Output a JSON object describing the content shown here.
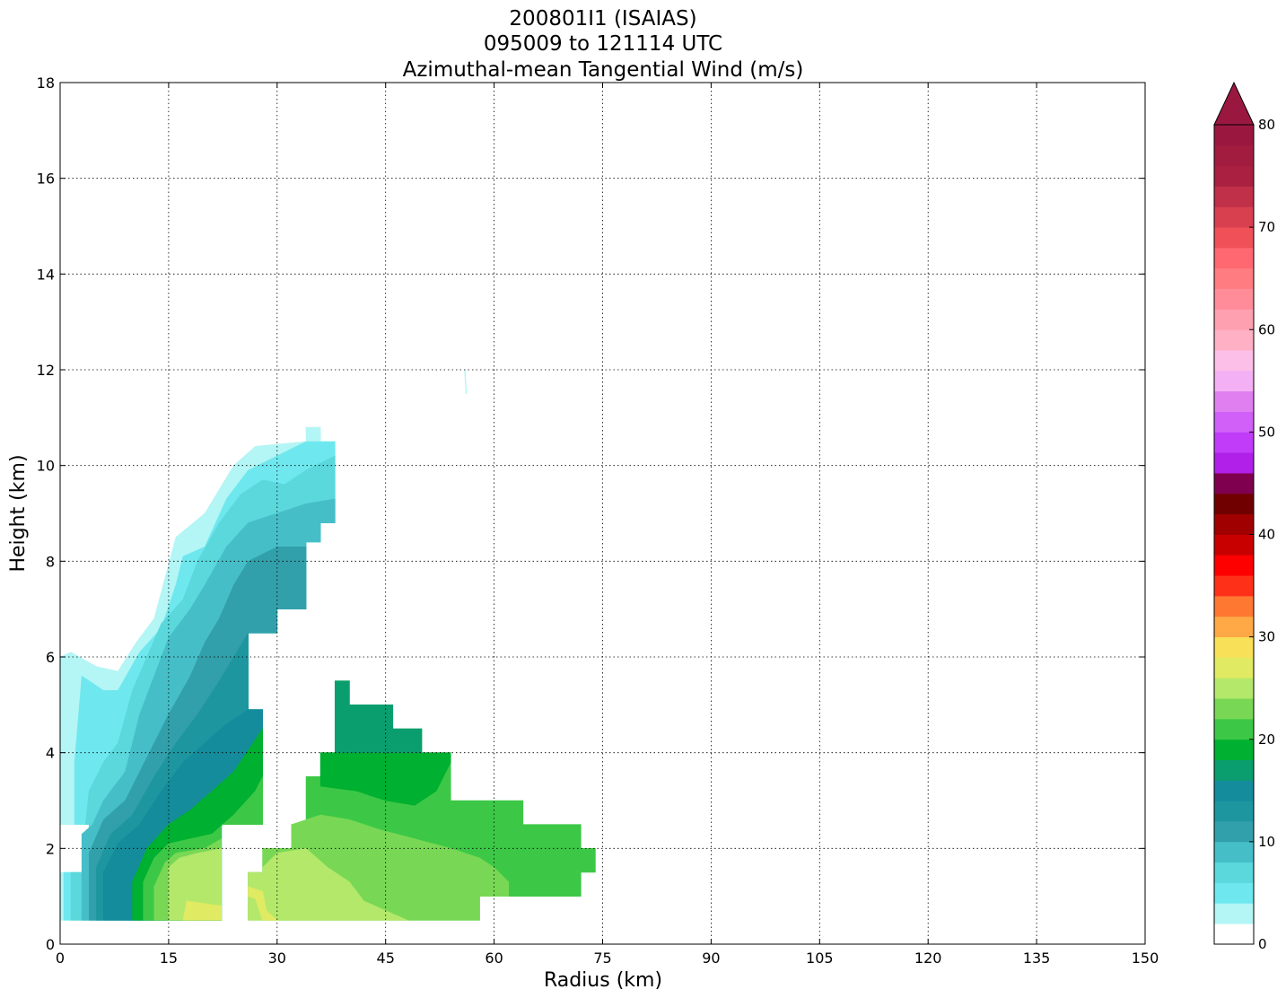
{
  "chart_data": {
    "type": "contourf",
    "title_lines": [
      "200801I1 (ISAIAS)",
      "095009 to 121114 UTC",
      "Azimuthal-mean Tangential Wind (m/s)"
    ],
    "x_label": "Radius (km)",
    "y_label": "Height (km)",
    "xlim": [
      0,
      150
    ],
    "ylim": [
      0,
      18
    ],
    "xticks": [
      0,
      15,
      30,
      45,
      60,
      75,
      90,
      105,
      120,
      135,
      150
    ],
    "yticks": [
      0,
      2,
      4,
      6,
      8,
      10,
      12,
      14,
      16,
      18
    ],
    "grid": true,
    "levels": [
      0,
      2,
      4,
      6,
      8,
      10,
      12,
      14,
      16,
      18,
      20,
      22,
      24,
      26,
      28,
      30,
      32,
      34,
      36,
      38,
      40,
      42,
      44,
      46,
      48,
      50,
      52,
      54,
      56,
      58,
      60,
      62,
      64,
      66,
      68,
      70,
      72,
      74,
      76,
      78,
      80
    ],
    "colors": [
      "#ffffff",
      "#b4f5f5",
      "#6ee8ee",
      "#5ad8dc",
      "#46bec8",
      "#32a0aa",
      "#1e96a0",
      "#148c9c",
      "#0a9e6e",
      "#00b030",
      "#3cc846",
      "#78d855",
      "#b4e86a",
      "#e0ea62",
      "#f8e058",
      "#ffa846",
      "#ff7832",
      "#ff3018",
      "#ff0000",
      "#c80000",
      "#a00000",
      "#700000",
      "#800050",
      "#b020e8",
      "#c03cf8",
      "#d060f8",
      "#e080f0",
      "#f4b0f4",
      "#fcc0e8",
      "#ffb0c4",
      "#ffa0b0",
      "#ff8c98",
      "#ff7c80",
      "#ff6870",
      "#f05058",
      "#d84050",
      "#c03048",
      "#aa2040",
      "#a21c40",
      "#9a1840"
    ],
    "extend_color": "#9a1840",
    "colorbar_ticks": [
      0,
      10,
      20,
      30,
      40,
      50,
      60,
      70,
      80
    ],
    "contours": [
      {
        "level": 2,
        "x": [
          0,
          0,
          4,
          4,
          0,
          0,
          1.5,
          5,
          8,
          10.5,
          13,
          16,
          20,
          24,
          27,
          34,
          34,
          36,
          36,
          38,
          38,
          36,
          36,
          34,
          34,
          30,
          30,
          26,
          26,
          28,
          28,
          22.3,
          22.3
        ],
        "y": [
          0.5,
          1.5,
          1.5,
          2.5,
          2.5,
          6.0,
          6.1,
          5.8,
          5.7,
          6.3,
          6.8,
          8.5,
          9.0,
          10.0,
          10.4,
          10.5,
          10.8,
          10.8,
          10.5,
          10.5,
          8.8,
          8.8,
          8.4,
          8.4,
          7.0,
          7.0,
          6.5,
          6.5,
          4.9,
          4.9,
          2.5,
          2.5,
          0.5
        ]
      },
      {
        "level": 4,
        "x": [
          0.5,
          0.5,
          4,
          4,
          2,
          2,
          3,
          6,
          8,
          11,
          14,
          16,
          17,
          20,
          23,
          26,
          30,
          34,
          38,
          38,
          36,
          36,
          34,
          34,
          30,
          30,
          26,
          26,
          28,
          28,
          22.3,
          22.3
        ],
        "y": [
          0.5,
          1.5,
          1.5,
          2.5,
          2.5,
          3.8,
          5.6,
          5.3,
          5.3,
          6.1,
          6.6,
          7.5,
          8.1,
          8.3,
          9.3,
          9.9,
          10.2,
          10.5,
          10.5,
          8.8,
          8.8,
          8.4,
          8.4,
          7.0,
          7.0,
          6.5,
          6.5,
          4.9,
          4.9,
          2.5,
          2.5,
          0.5
        ]
      },
      {
        "level": 6,
        "x": [
          1.5,
          1.5,
          4,
          4,
          3.5,
          4,
          6,
          8,
          10,
          12,
          14,
          17,
          19,
          22,
          25,
          28,
          31,
          34,
          38,
          38,
          36,
          36,
          34,
          34,
          30,
          30,
          26,
          26,
          28,
          28,
          22.3,
          22.3
        ],
        "y": [
          0.5,
          1.5,
          1.5,
          2.5,
          2.5,
          3.2,
          3.8,
          4.2,
          5.3,
          6.0,
          6.7,
          7.2,
          8.0,
          8.8,
          9.4,
          9.7,
          9.6,
          9.9,
          10.2,
          8.8,
          8.8,
          8.4,
          8.4,
          7.0,
          7.0,
          6.5,
          6.5,
          4.9,
          4.9,
          2.5,
          2.5,
          0.5
        ]
      },
      {
        "level": 8,
        "x": [
          3,
          3,
          4.5,
          6,
          9,
          11,
          13,
          15,
          18,
          20,
          23,
          26,
          30,
          34,
          38,
          38,
          36,
          36,
          34,
          34,
          30,
          30,
          26,
          26,
          28,
          28,
          22.3,
          22.3
        ],
        "y": [
          0.5,
          2.3,
          2.5,
          3.0,
          3.6,
          4.8,
          5.6,
          6.4,
          7.0,
          7.5,
          8.3,
          8.8,
          9.0,
          9.2,
          9.3,
          8.8,
          8.8,
          8.4,
          8.4,
          7.0,
          7.0,
          6.5,
          6.5,
          4.9,
          4.9,
          2.5,
          2.5,
          0.5
        ]
      },
      {
        "level": 10,
        "x": [
          4,
          4,
          6,
          9,
          12,
          15,
          18,
          20,
          22,
          24,
          26,
          30,
          34,
          34,
          30,
          30,
          26,
          26,
          28,
          28,
          22.3,
          22.3
        ],
        "y": [
          0.5,
          1.9,
          2.6,
          3.0,
          3.9,
          4.8,
          5.6,
          6.3,
          6.8,
          7.5,
          8.0,
          8.3,
          8.3,
          7.0,
          7.0,
          6.5,
          6.5,
          4.9,
          4.9,
          2.5,
          2.5,
          0.5
        ]
      },
      {
        "level": 12,
        "x": [
          5,
          5,
          7,
          10,
          13,
          16,
          19,
          22,
          24,
          26,
          26,
          28,
          28,
          22.3,
          22.3
        ],
        "y": [
          0.5,
          1.6,
          2.3,
          2.7,
          3.5,
          4.2,
          4.8,
          5.5,
          6.0,
          6.5,
          4.9,
          4.9,
          2.5,
          2.5,
          0.5
        ]
      },
      {
        "level": 14,
        "x": [
          6,
          6,
          8,
          11,
          14,
          17,
          20,
          23,
          26,
          28,
          28,
          22.3,
          22.3
        ],
        "y": [
          0.5,
          1.5,
          2.1,
          2.5,
          3.2,
          3.8,
          4.2,
          4.6,
          4.9,
          4.9,
          2.5,
          2.5,
          0.5
        ]
      },
      {
        "level": 18,
        "x": [
          10,
          10,
          12,
          15,
          18,
          21,
          24,
          28,
          28,
          22.3,
          22.3
        ],
        "y": [
          0.5,
          1.3,
          2.0,
          2.5,
          2.8,
          3.2,
          3.6,
          4.5,
          2.5,
          2.5,
          0.5
        ]
      },
      {
        "level": 20,
        "x": [
          11.5,
          11.5,
          13,
          15,
          18,
          21,
          24,
          27,
          28,
          28,
          22.3,
          22.3
        ],
        "y": [
          0.5,
          1.3,
          1.8,
          2.1,
          2.2,
          2.3,
          2.7,
          3.2,
          3.5,
          2.5,
          2.5,
          0.5
        ]
      },
      {
        "level": 22,
        "x": [
          13,
          13,
          14.5,
          16,
          20,
          22.3,
          22.3
        ],
        "y": [
          0.5,
          1.2,
          1.7,
          1.9,
          2.0,
          2.2,
          0.5
        ]
      },
      {
        "level": 24,
        "x": [
          15,
          15,
          16.5,
          19,
          22.3,
          22.3
        ],
        "y": [
          0.5,
          1.6,
          1.8,
          1.9,
          2.0,
          0.5
        ]
      },
      {
        "level": 26,
        "x": [
          17,
          17.5,
          22.3,
          22.3
        ],
        "y": [
          0.5,
          0.9,
          0.8,
          0.5
        ]
      },
      {
        "level": 20,
        "x": [
          26,
          26,
          28,
          28,
          32,
          32,
          34,
          34,
          36,
          36,
          38,
          38,
          40,
          40,
          46,
          46,
          50,
          50,
          54,
          54,
          64,
          64,
          72,
          72,
          74,
          74,
          72,
          72,
          58,
          58
        ],
        "y": [
          0.5,
          1.5,
          1.5,
          2.0,
          2.0,
          2.5,
          2.5,
          3.5,
          3.5,
          4.0,
          4.0,
          5.5,
          5.5,
          5.0,
          5.0,
          4.5,
          4.5,
          4.0,
          4.0,
          3.0,
          3.0,
          2.5,
          2.5,
          2.0,
          2.0,
          1.5,
          1.5,
          1.0,
          1.0,
          0.5
        ]
      },
      {
        "level": 18,
        "x": [
          36,
          36,
          54,
          54,
          52,
          49,
          45,
          41
        ],
        "y": [
          3.3,
          4.0,
          4.0,
          3.8,
          3.2,
          2.9,
          3.0,
          3.2
        ]
      },
      {
        "level": 16,
        "x": [
          38,
          38,
          40,
          40,
          46,
          46,
          50,
          50
        ],
        "y": [
          4.0,
          5.5,
          5.5,
          5.0,
          5.0,
          4.5,
          4.5,
          4.0
        ]
      },
      {
        "level": 22,
        "x": [
          28,
          28,
          32,
          32,
          36,
          40,
          44,
          49,
          54,
          58,
          60,
          62,
          62,
          58,
          58
        ],
        "y": [
          0.5,
          2.0,
          2.0,
          2.5,
          2.7,
          2.6,
          2.4,
          2.2,
          2.0,
          1.8,
          1.6,
          1.3,
          1.0,
          1.0,
          0.5
        ]
      },
      {
        "level": 24,
        "x": [
          26,
          26,
          28,
          28,
          30,
          34,
          37,
          40,
          42,
          45,
          48
        ],
        "y": [
          0.5,
          1.5,
          1.5,
          1.6,
          1.9,
          2.0,
          1.6,
          1.3,
          0.9,
          0.7,
          0.5
        ]
      },
      {
        "level": 26,
        "x": [
          26,
          26,
          28,
          28.5,
          30,
          28,
          27
        ],
        "y": [
          1.0,
          1.2,
          1.1,
          0.7,
          0.5,
          0.5,
          0.95
        ]
      },
      {
        "level": 2,
        "x": [
          55.9,
          56.1,
          56.2,
          56.0
        ],
        "y": [
          12.0,
          11.5,
          11.5,
          12.0
        ]
      }
    ]
  }
}
